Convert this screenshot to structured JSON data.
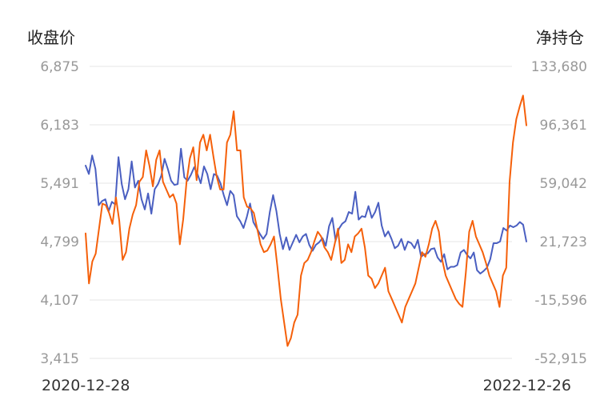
{
  "chart_data": {
    "type": "line",
    "left_axis_label": "收盘价",
    "right_axis_label": "净持仓",
    "left_ticks": [
      "6,875",
      "6,183",
      "5,491",
      "4,799",
      "4,107",
      "3,415"
    ],
    "right_ticks": [
      "133,680",
      "96,361",
      "59,042",
      "21,723",
      "-15,596",
      "-52,915"
    ],
    "x_labels": [
      "2020-12-28",
      "2022-12-26"
    ],
    "ylim_left": [
      3415,
      6875
    ],
    "ylim_right": [
      -52915,
      133680
    ],
    "grid": true,
    "colors": {
      "close": "#4a5fc1",
      "net": "#f5600a"
    },
    "series": [
      {
        "axis": "left",
        "values": [
          5700,
          5600,
          5820,
          5660,
          5230,
          5280,
          5300,
          5160,
          5270,
          5240,
          5800,
          5480,
          5300,
          5420,
          5750,
          5440,
          5520,
          5300,
          5180,
          5370,
          5130,
          5420,
          5480,
          5580,
          5780,
          5660,
          5520,
          5470,
          5480,
          5900,
          5560,
          5520,
          5590,
          5680,
          5600,
          5490,
          5690,
          5600,
          5420,
          5600,
          5580,
          5490,
          5350,
          5230,
          5400,
          5350,
          5100,
          5040,
          4960,
          5090,
          5250,
          5030,
          4960,
          4890,
          4830,
          4890,
          5150,
          5350,
          5160,
          4890,
          4710,
          4850,
          4700,
          4790,
          4880,
          4790,
          4860,
          4890,
          4760,
          4690,
          4760,
          4790,
          4840,
          4750,
          4980,
          5080,
          4810,
          4950,
          5010,
          5040,
          5150,
          5130,
          5390,
          5060,
          5100,
          5090,
          5220,
          5080,
          5150,
          5260,
          4990,
          4860,
          4920,
          4830,
          4720,
          4750,
          4830,
          4700,
          4800,
          4780,
          4720,
          4820,
          4620,
          4650,
          4660,
          4710,
          4720,
          4610,
          4560,
          4650,
          4470,
          4500,
          4500,
          4520,
          4670,
          4700,
          4640,
          4600,
          4670,
          4460,
          4420,
          4450,
          4490,
          4590,
          4780,
          4780,
          4800,
          4960,
          4930,
          4990,
          4970,
          4990,
          5030,
          5000,
          4800
        ]
      },
      {
        "axis": "right",
        "values": [
          27000,
          -5000,
          9000,
          14000,
          30000,
          46000,
          45000,
          40000,
          33000,
          50000,
          35000,
          10000,
          15000,
          30000,
          39000,
          45000,
          60000,
          63000,
          80000,
          70000,
          57000,
          74000,
          80000,
          60000,
          55000,
          50000,
          52000,
          46000,
          20000,
          36000,
          60000,
          75000,
          82000,
          61000,
          85000,
          90000,
          80000,
          90000,
          76000,
          63000,
          55000,
          55000,
          85000,
          90000,
          105000,
          80000,
          80000,
          50000,
          44000,
          43000,
          40000,
          30000,
          20000,
          15000,
          16000,
          20000,
          25000,
          6000,
          -15000,
          -30000,
          -45000,
          -40000,
          -30000,
          -25000,
          0,
          8000,
          10000,
          15000,
          22000,
          28000,
          25000,
          18000,
          15000,
          10000,
          20000,
          30000,
          8000,
          10000,
          20000,
          15000,
          25000,
          27000,
          30000,
          18000,
          0,
          -2000,
          -8000,
          -5000,
          0,
          5000,
          -10000,
          -15000,
          -20000,
          -25000,
          -30000,
          -20000,
          -15000,
          -10000,
          -5000,
          5000,
          15000,
          12000,
          20000,
          30000,
          35000,
          28000,
          10000,
          0,
          -5000,
          -10000,
          -15000,
          -18000,
          -20000,
          2000,
          28000,
          35000,
          25000,
          20000,
          15000,
          8000,
          0,
          -5000,
          -10000,
          -20000,
          0,
          5000,
          60000,
          85000,
          100000,
          108000,
          115000,
          96000
        ]
      }
    ]
  }
}
